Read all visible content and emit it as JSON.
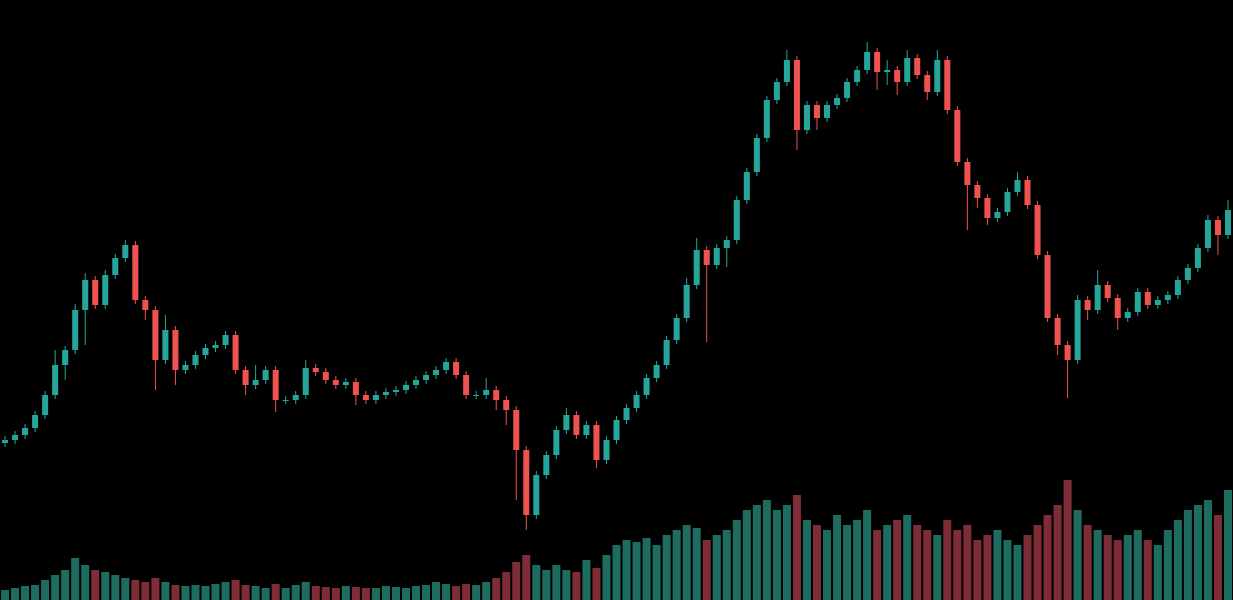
{
  "chart_data": {
    "type": "candlestick",
    "up_color": "#26a69a",
    "down_color": "#ef5350",
    "volume_up_color": "#1e6b60",
    "volume_down_color": "#7e2d37",
    "ylim": [
      0,
      600
    ],
    "y2lim": [
      0,
      600
    ],
    "open": [
      157,
      160,
      165,
      172,
      185,
      205,
      235,
      250,
      290,
      320,
      295,
      325,
      342,
      355,
      300,
      290,
      240,
      270,
      230,
      235,
      245,
      252,
      255,
      265,
      230,
      215,
      220,
      230,
      200,
      200,
      205,
      232,
      228,
      220,
      215,
      218,
      205,
      200,
      205,
      208,
      210,
      215,
      220,
      225,
      230,
      238,
      225,
      205,
      205,
      210,
      200,
      190,
      150,
      85,
      125,
      145,
      170,
      185,
      165,
      175,
      140,
      160,
      180,
      192,
      205,
      222,
      235,
      260,
      282,
      315,
      350,
      335,
      352,
      360,
      400,
      428,
      462,
      500,
      518,
      540,
      470,
      495,
      482,
      495,
      502,
      518,
      530,
      548,
      528,
      530,
      518,
      542,
      525,
      508,
      540,
      490,
      438,
      415,
      402,
      382,
      388,
      408,
      420,
      395,
      345,
      282,
      255,
      240,
      300,
      290,
      315,
      302,
      282,
      288,
      308,
      295,
      300,
      305,
      320,
      332,
      352,
      380,
      365
    ],
    "high": [
      164,
      169,
      176,
      189,
      209,
      250,
      254,
      296,
      327,
      324,
      330,
      346,
      360,
      359,
      304,
      294,
      285,
      274,
      239,
      249,
      256,
      259,
      269,
      269,
      234,
      235,
      234,
      234,
      204,
      209,
      240,
      236,
      232,
      224,
      222,
      222,
      209,
      209,
      212,
      214,
      219,
      224,
      229,
      234,
      242,
      242,
      229,
      209,
      222,
      214,
      204,
      194,
      154,
      129,
      149,
      174,
      192,
      189,
      179,
      179,
      164,
      184,
      196,
      209,
      226,
      239,
      264,
      286,
      322,
      362,
      354,
      356,
      364,
      404,
      432,
      466,
      504,
      522,
      550,
      544,
      499,
      499,
      499,
      506,
      522,
      534,
      558,
      552,
      540,
      534,
      550,
      546,
      529,
      550,
      544,
      494,
      442,
      419,
      406,
      392,
      412,
      428,
      424,
      399,
      349,
      286,
      259,
      305,
      304,
      330,
      319,
      306,
      292,
      312,
      312,
      304,
      309,
      324,
      336,
      356,
      385,
      384,
      400
    ],
    "low": [
      153,
      156,
      161,
      168,
      181,
      201,
      220,
      246,
      255,
      291,
      291,
      321,
      338,
      296,
      280,
      210,
      236,
      215,
      226,
      231,
      241,
      248,
      251,
      226,
      205,
      211,
      216,
      188,
      196,
      196,
      201,
      224,
      216,
      211,
      211,
      195,
      196,
      196,
      201,
      204,
      206,
      211,
      216,
      221,
      226,
      221,
      201,
      201,
      201,
      190,
      175,
      100,
      70,
      81,
      121,
      141,
      166,
      161,
      161,
      132,
      136,
      156,
      176,
      188,
      201,
      218,
      231,
      256,
      278,
      311,
      258,
      331,
      333,
      356,
      396,
      424,
      458,
      496,
      514,
      450,
      466,
      470,
      478,
      491,
      498,
      514,
      526,
      510,
      515,
      505,
      514,
      521,
      500,
      504,
      486,
      434,
      370,
      392,
      375,
      378,
      384,
      404,
      391,
      341,
      278,
      245,
      202,
      236,
      280,
      286,
      298,
      270,
      278,
      284,
      291,
      291,
      296,
      301,
      316,
      328,
      348,
      345,
      361
    ],
    "close": [
      160,
      165,
      172,
      185,
      205,
      235,
      250,
      290,
      320,
      295,
      325,
      342,
      355,
      300,
      290,
      240,
      270,
      230,
      235,
      245,
      252,
      255,
      265,
      230,
      215,
      220,
      230,
      200,
      200,
      205,
      232,
      228,
      220,
      215,
      218,
      205,
      200,
      205,
      208,
      210,
      215,
      220,
      225,
      230,
      238,
      225,
      205,
      205,
      210,
      200,
      190,
      150,
      85,
      125,
      145,
      170,
      185,
      165,
      175,
      140,
      160,
      180,
      192,
      205,
      222,
      235,
      260,
      282,
      315,
      350,
      335,
      352,
      360,
      400,
      428,
      462,
      500,
      518,
      540,
      470,
      495,
      482,
      495,
      502,
      518,
      530,
      548,
      528,
      530,
      518,
      542,
      525,
      508,
      540,
      490,
      438,
      415,
      402,
      382,
      388,
      408,
      420,
      395,
      345,
      282,
      255,
      240,
      300,
      290,
      315,
      302,
      282,
      288,
      308,
      295,
      300,
      305,
      320,
      332,
      352,
      380,
      365,
      390
    ],
    "volume": [
      10,
      12,
      14,
      15,
      20,
      25,
      30,
      42,
      35,
      30,
      28,
      25,
      22,
      20,
      18,
      22,
      18,
      15,
      14,
      15,
      14,
      16,
      18,
      20,
      15,
      14,
      12,
      16,
      12,
      15,
      18,
      14,
      13,
      12,
      14,
      13,
      12,
      12,
      14,
      13,
      12,
      14,
      15,
      18,
      16,
      14,
      16,
      15,
      18,
      22,
      28,
      38,
      45,
      35,
      30,
      35,
      30,
      28,
      40,
      32,
      45,
      55,
      60,
      58,
      62,
      55,
      65,
      70,
      75,
      72,
      60,
      65,
      70,
      80,
      90,
      95,
      100,
      90,
      95,
      105,
      80,
      75,
      70,
      85,
      75,
      80,
      90,
      70,
      75,
      80,
      85,
      75,
      70,
      65,
      80,
      70,
      75,
      60,
      65,
      70,
      60,
      55,
      65,
      75,
      85,
      95,
      120,
      90,
      75,
      70,
      65,
      60,
      65,
      70,
      60,
      55,
      70,
      80,
      90,
      95,
      100,
      85,
      110
    ]
  }
}
